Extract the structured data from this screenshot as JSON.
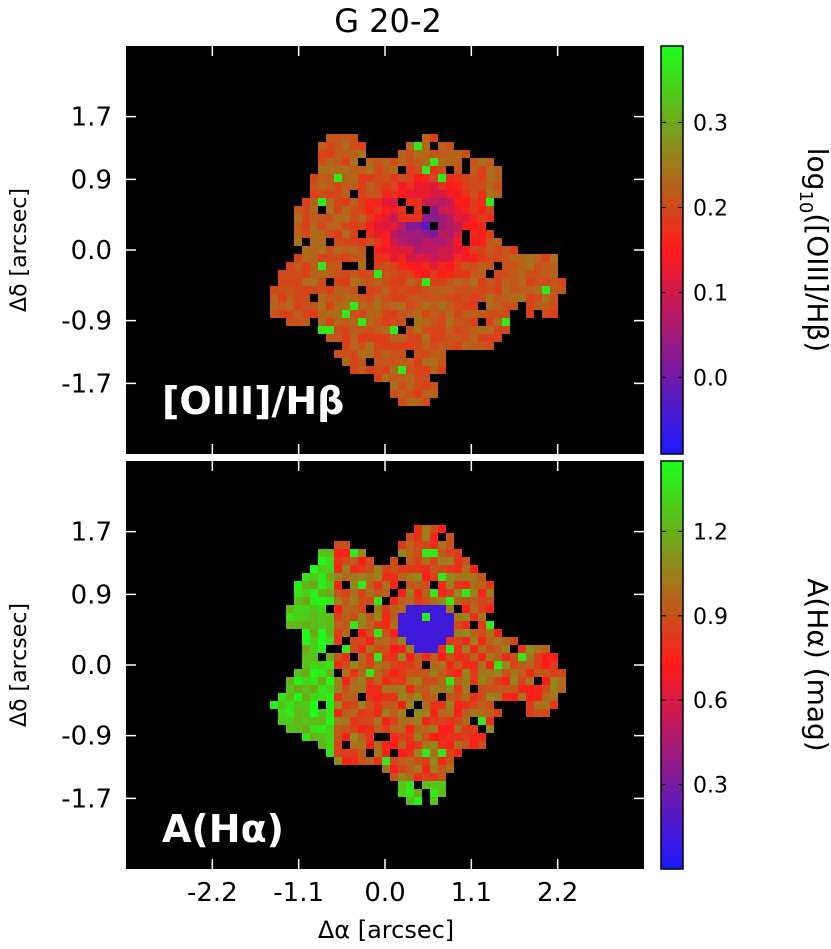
{
  "title": "G 20-2",
  "x_label": "Δα [arcsec]",
  "y_label": "Δδ [arcsec]",
  "chart_data": [
    {
      "type": "heatmap",
      "panel_label": "[OIII]/Hβ",
      "colorbar_label": "log10([OIII]/Hβ)",
      "colorbar_label_main": "log",
      "colorbar_label_sub": "10",
      "colorbar_label_rest": "([OIII]/Hβ)",
      "colorbar_range": [
        -0.09,
        0.39
      ],
      "colorbar_ticks": [
        "0.0",
        "0.1",
        "0.2",
        "0.3"
      ],
      "colorbar_tick_values": [
        0.0,
        0.1,
        0.2,
        0.3
      ],
      "x_ticks": [
        "-2.2",
        "-1.1",
        "0.0",
        "1.1",
        "2.2"
      ],
      "x_tick_values": [
        -2.2,
        -1.1,
        0.0,
        1.1,
        2.2
      ],
      "y_ticks": [
        "-1.7",
        "-0.9",
        "0.0",
        "0.9",
        "1.7"
      ],
      "y_tick_values": [
        -1.7,
        -0.9,
        0.0,
        0.9,
        1.7
      ],
      "xlim": [
        -3.3,
        3.3
      ],
      "ylim": [
        2.6,
        -2.6
      ],
      "colormap": [
        "#1a1aff",
        "#ff1a1a",
        "#1aff1a"
      ]
    },
    {
      "type": "heatmap",
      "panel_label": "A(Hα)",
      "colorbar_label": "A(Hα) (mag)",
      "colorbar_range": [
        0.0,
        1.45
      ],
      "colorbar_ticks": [
        "0.3",
        "0.6",
        "0.9",
        "1.2"
      ],
      "colorbar_tick_values": [
        0.3,
        0.6,
        0.9,
        1.2
      ],
      "x_ticks": [
        "-2.2",
        "-1.1",
        "0.0",
        "1.1",
        "2.2"
      ],
      "x_tick_values": [
        -2.2,
        -1.1,
        0.0,
        1.1,
        2.2
      ],
      "y_ticks": [
        "-1.7",
        "-0.9",
        "0.0",
        "0.9",
        "1.7"
      ],
      "y_tick_values": [
        -1.7,
        -0.9,
        0.0,
        0.9,
        1.7
      ],
      "xlim": [
        -3.3,
        3.3
      ],
      "ylim": [
        2.6,
        -2.6
      ],
      "colormap": [
        "#1a1aff",
        "#ff1a1a",
        "#1aff1a"
      ]
    }
  ]
}
